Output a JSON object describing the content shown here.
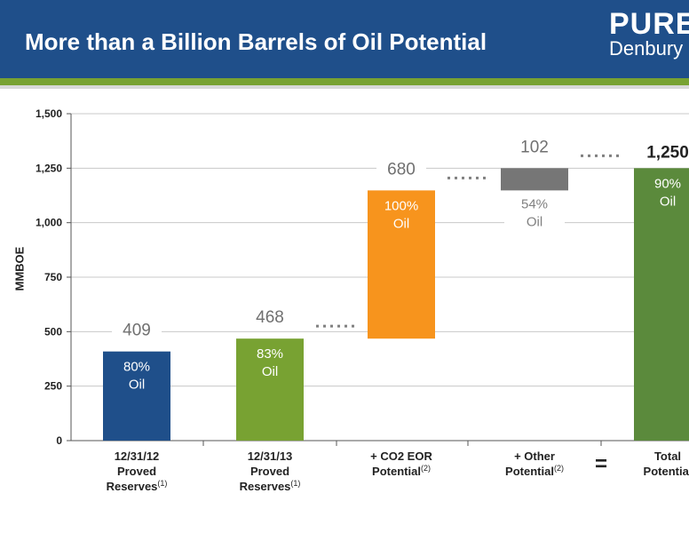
{
  "header": {
    "title": "More than a Billion Barrels of Oil Potential",
    "logo_line1": "PURE",
    "logo_line2": "Denbury",
    "header_color": "#1f4f8a",
    "accent_color": "#78a232"
  },
  "chart_data": {
    "type": "bar",
    "chart_subtype": "waterfall",
    "ylabel": "MMBOE",
    "ylim": [
      0,
      1500
    ],
    "yticks": [
      "0",
      "250",
      "500",
      "750",
      "1,000",
      "1,250",
      "1,500"
    ],
    "ytick_values": [
      0,
      250,
      500,
      750,
      1000,
      1250,
      1500
    ],
    "grid": true,
    "equals_sign": "=",
    "categories": [
      {
        "lines": [
          "12/31/12",
          "Proved",
          "Reserves"
        ],
        "footnote": "(1)"
      },
      {
        "lines": [
          "12/31/13",
          "Proved",
          "Reserves"
        ],
        "footnote": "(1)"
      },
      {
        "lines": [
          "+ CO2 EOR",
          "Potential"
        ],
        "footnote": "(2)"
      },
      {
        "lines": [
          "+ Other",
          "Potential"
        ],
        "footnote": "(2)"
      },
      {
        "lines": [
          "Total",
          "Potential"
        ],
        "footnote": ""
      }
    ],
    "bars": [
      {
        "base": 0,
        "top": 409,
        "value_label": "409",
        "inner_label": [
          "80%",
          "Oil"
        ],
        "color": "#1f4f8a"
      },
      {
        "base": 0,
        "top": 468,
        "value_label": "468",
        "inner_label": [
          "83%",
          "Oil"
        ],
        "color": "#78a232"
      },
      {
        "base": 468,
        "top": 1148,
        "value_label": "680",
        "inner_label": [
          "100%",
          "Oil"
        ],
        "color": "#f7941d"
      },
      {
        "base": 1148,
        "top": 1250,
        "value_label": "102",
        "inner_label": [
          "54%",
          "Oil"
        ],
        "color": "#767676"
      },
      {
        "base": 0,
        "top": 1250,
        "value_label": "1,250",
        "inner_label": [
          "90%",
          "Oil"
        ],
        "color": "#5b8a3c"
      }
    ]
  }
}
